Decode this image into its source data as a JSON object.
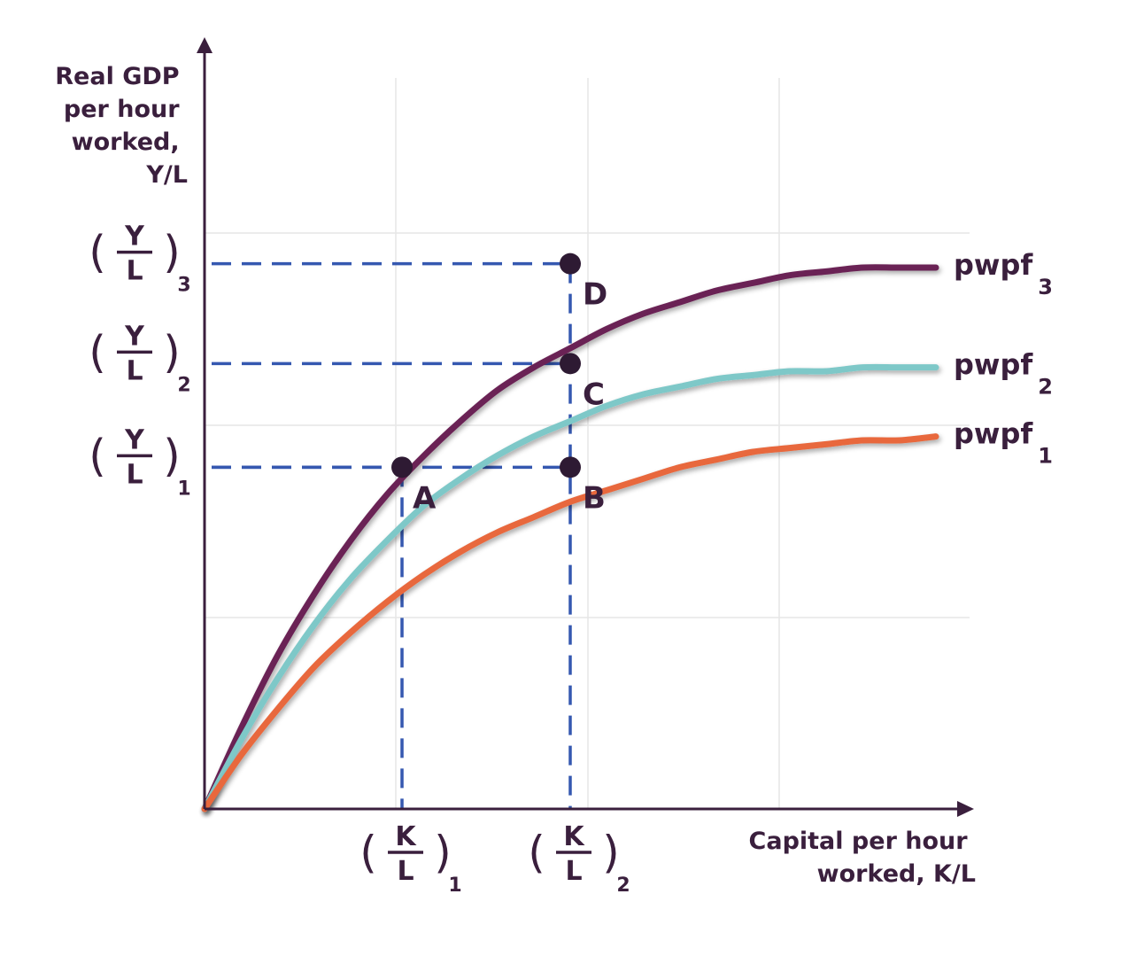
{
  "chart_data": {
    "type": "line",
    "x_axis_title": [
      "Capital per hour",
      "worked, K/L"
    ],
    "y_axis_title": [
      "Real GDP",
      "per hour",
      "worked,",
      "Y/L"
    ],
    "xlim": [
      0,
      10
    ],
    "ylim": [
      0,
      15
    ],
    "grid": true,
    "series": [
      {
        "name": "pwpf",
        "subscript": "3",
        "color": "#6b2254",
        "x": [
          0,
          0.5,
          1,
          1.5,
          2,
          2.5,
          3,
          3.5,
          4,
          4.5,
          5,
          5.5,
          6,
          6.5,
          7,
          7.5,
          8,
          8.5,
          9,
          9.5,
          10
        ],
        "y": [
          0,
          2.1,
          4.0,
          5.6,
          7.0,
          8.2,
          9.2,
          10.1,
          10.9,
          11.5,
          12.0,
          12.5,
          12.9,
          13.2,
          13.5,
          13.7,
          13.9,
          14.0,
          14.1,
          14.1,
          14.1
        ]
      },
      {
        "name": "pwpf",
        "subscript": "2",
        "color": "#7ec8c8",
        "x": [
          0,
          0.5,
          1,
          1.5,
          2,
          2.5,
          3,
          3.5,
          4,
          4.5,
          5,
          5.5,
          6,
          6.5,
          7,
          7.5,
          8,
          8.5,
          9,
          9.5,
          10
        ],
        "y": [
          0,
          1.8,
          3.4,
          4.8,
          6.0,
          7.0,
          7.9,
          8.6,
          9.2,
          9.7,
          10.1,
          10.5,
          10.8,
          11.0,
          11.2,
          11.3,
          11.4,
          11.4,
          11.5,
          11.5,
          11.5
        ]
      },
      {
        "name": "pwpf",
        "subscript": "1",
        "color": "#e8673c",
        "x": [
          0,
          0.5,
          1,
          1.5,
          2,
          2.5,
          3,
          3.5,
          4,
          4.5,
          5,
          5.5,
          6,
          6.5,
          7,
          7.5,
          8,
          8.5,
          9,
          9.5,
          10
        ],
        "y": [
          0,
          1.4,
          2.6,
          3.7,
          4.6,
          5.4,
          6.1,
          6.7,
          7.2,
          7.6,
          8.0,
          8.3,
          8.6,
          8.9,
          9.1,
          9.3,
          9.4,
          9.5,
          9.6,
          9.6,
          9.7
        ]
      }
    ],
    "points": [
      {
        "label": "A",
        "x": 2.7,
        "y": 8.9
      },
      {
        "label": "B",
        "x": 5.0,
        "y": 8.9
      },
      {
        "label": "C",
        "x": 5.0,
        "y": 11.6
      },
      {
        "label": "D",
        "x": 5.0,
        "y": 14.2
      }
    ],
    "x_ticks": [
      {
        "num": "K",
        "den": "L",
        "sub": "1",
        "x": 2.7
      },
      {
        "num": "K",
        "den": "L",
        "sub": "2",
        "x": 5.0
      }
    ],
    "y_ticks": [
      {
        "num": "Y",
        "den": "L",
        "sub": "3",
        "y": 14.2
      },
      {
        "num": "Y",
        "den": "L",
        "sub": "2",
        "y": 11.6
      },
      {
        "num": "Y",
        "den": "L",
        "sub": "1",
        "y": 8.9
      }
    ],
    "colors": {
      "axis": "#3a1f3d",
      "guide": "#3558b0",
      "grid": "#e6e6e6",
      "point": "#2e1a33"
    }
  }
}
